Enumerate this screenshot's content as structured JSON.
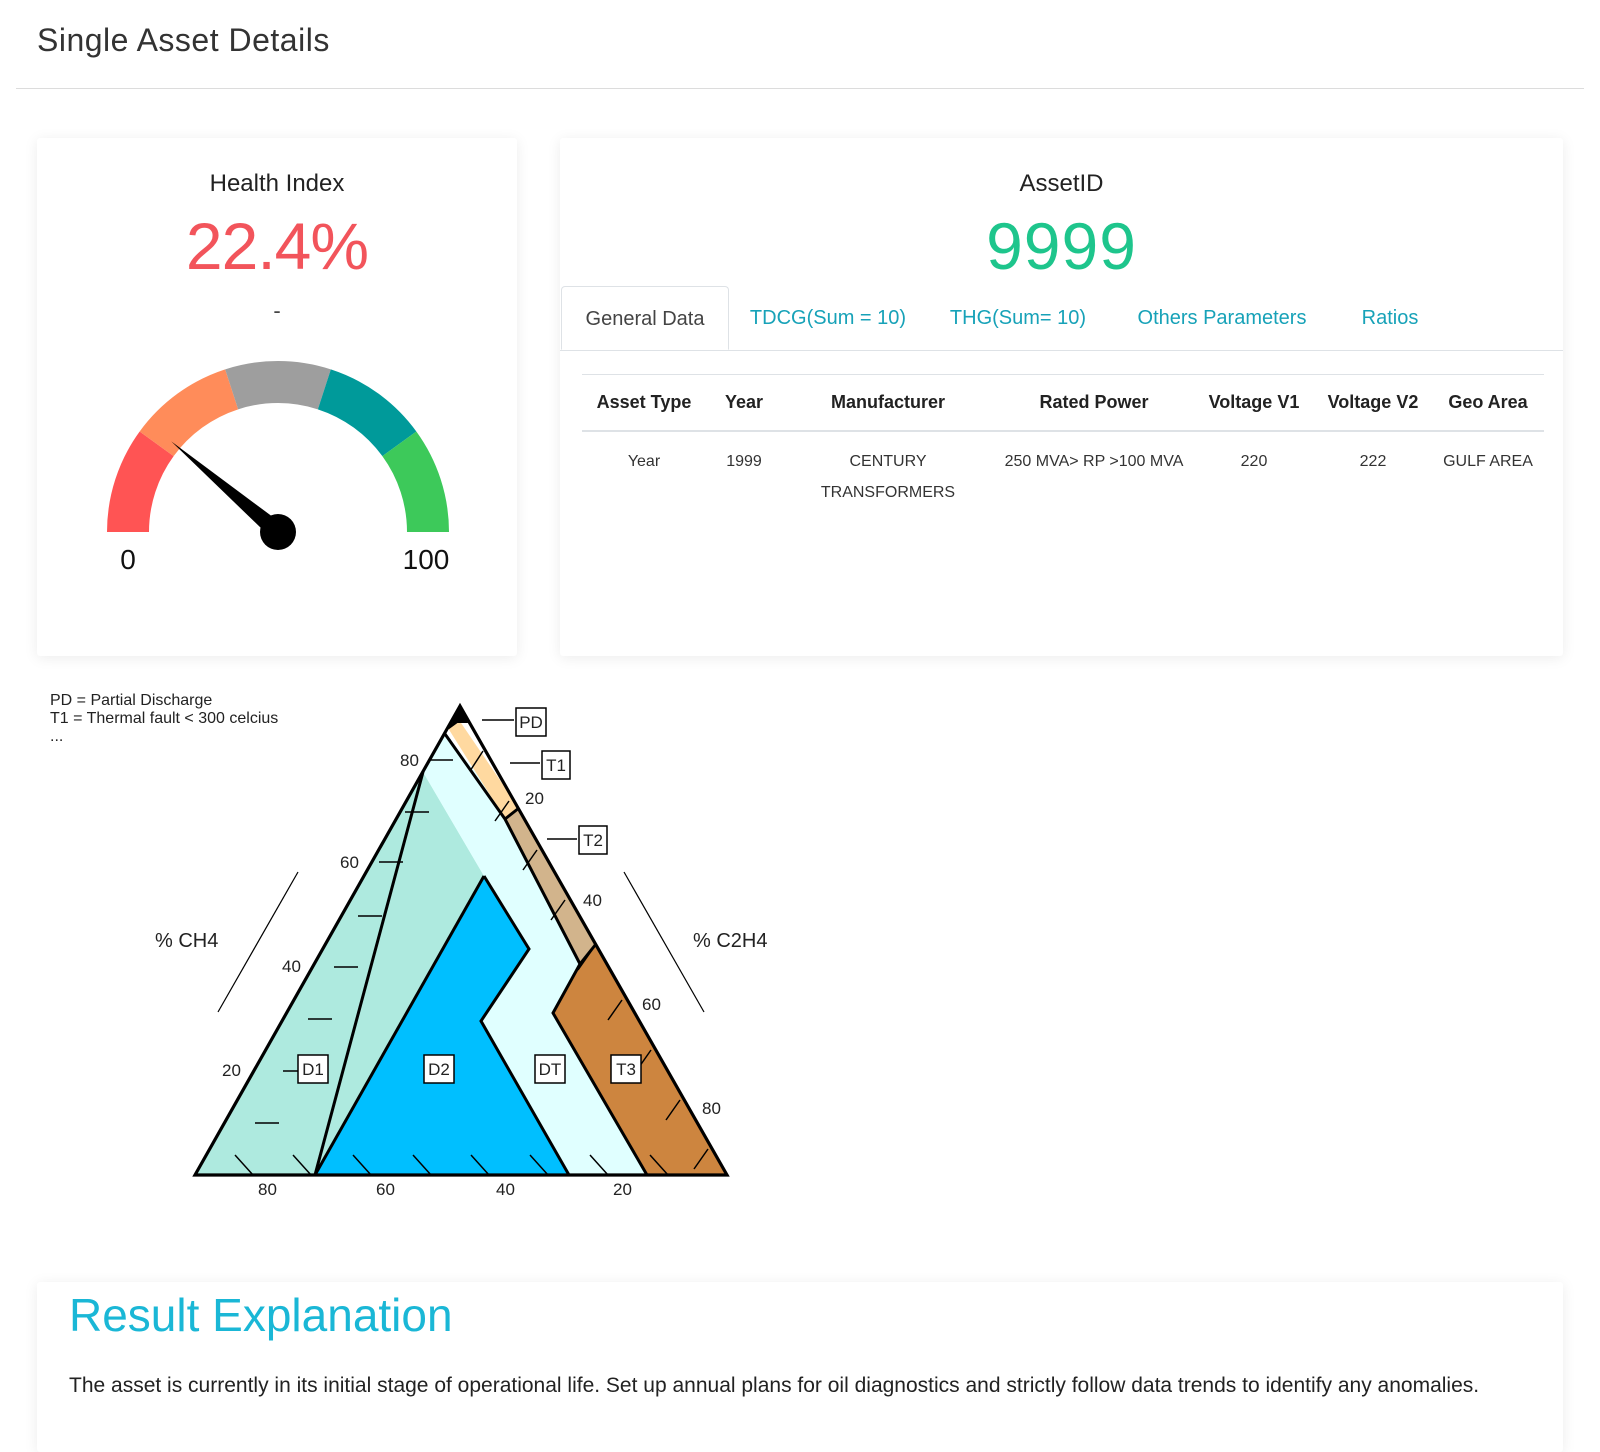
{
  "page": {
    "title": "Single Asset Details"
  },
  "health": {
    "label": "Health Index",
    "value": "22.4%",
    "subtitle": "-",
    "gauge": {
      "min_label": "0",
      "max_label": "100",
      "value": 22.4,
      "segment_colors": [
        "#ff5454",
        "#ff8c5a",
        "#9e9e9e",
        "#009a9a",
        "#3dc95a"
      ]
    }
  },
  "asset": {
    "label": "AssetID",
    "value": "9999",
    "tabs": [
      {
        "label": "General Data",
        "active": true
      },
      {
        "label": "TDCG(Sum = 10)",
        "active": false
      },
      {
        "label": "THG(Sum= 10)",
        "active": false
      },
      {
        "label": "Others Parameters",
        "active": false
      },
      {
        "label": "Ratios",
        "active": false
      }
    ],
    "table": {
      "headers": [
        "Asset Type",
        "Year",
        "Manufacturer",
        "Rated Power",
        "Voltage V1",
        "Voltage V2",
        "Geo Area"
      ],
      "rows": [
        [
          "Year",
          "1999",
          "CENTURY TRANSFORMERS",
          "250 MVA> RP >100 MVA",
          "220",
          "222",
          "GULF AREA"
        ]
      ]
    }
  },
  "duval": {
    "legend": [
      "PD = Partial Discharge",
      "T1 = Thermal fault < 300 celcius",
      "..."
    ],
    "left_axis_label": "% CH4",
    "right_axis_label": "% C2H4",
    "left_ticks": [
      "80",
      "60",
      "40",
      "20"
    ],
    "right_ticks": [
      "20",
      "40",
      "60",
      "80"
    ],
    "bottom_ticks": [
      "80",
      "60",
      "40",
      "20"
    ],
    "zones": [
      {
        "label": "PD",
        "color": "#000000"
      },
      {
        "label": "T1",
        "color": "#ffd9a0"
      },
      {
        "label": "T2",
        "color": "#d2b48c"
      },
      {
        "label": "T3",
        "color": "#cd853f"
      },
      {
        "label": "DT",
        "color": "#e0ffff"
      },
      {
        "label": "D1",
        "color": "#aeeadf"
      },
      {
        "label": "D2",
        "color": "#00bfff"
      }
    ]
  },
  "result": {
    "title": "Result Explanation",
    "text": "The asset is currently in its initial stage of operational life. Set up annual plans for oil diagnostics and strictly follow data trends to identify any anomalies."
  }
}
